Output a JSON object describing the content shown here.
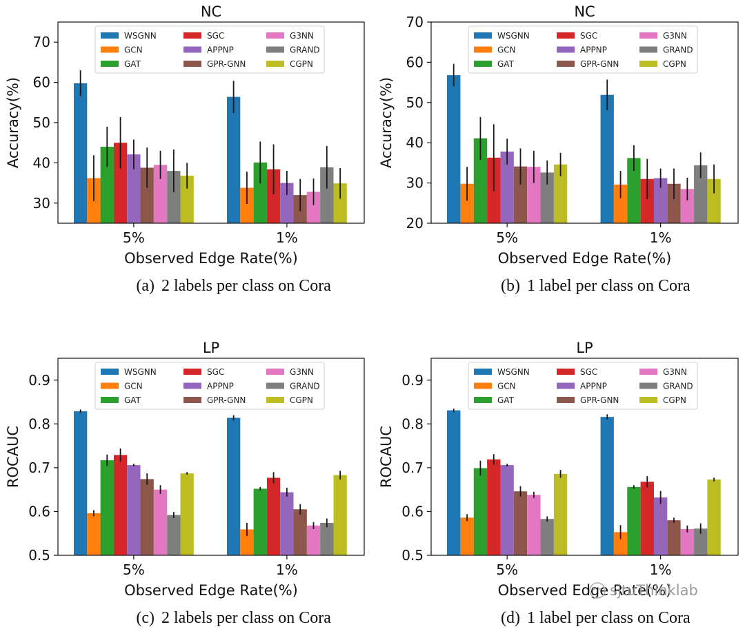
{
  "legend_labels": [
    "WSGNN",
    "GCN",
    "GAT",
    "SGC",
    "APPNP",
    "GPR-GNN",
    "G3NN",
    "GRAND",
    "CGPN"
  ],
  "colors": [
    "#1f77b4",
    "#ff7f0e",
    "#2ca02c",
    "#d62728",
    "#9467bd",
    "#8c564b",
    "#e377c2",
    "#7f7f7f",
    "#bcbd22"
  ],
  "xlabel": "Observed Edge Rate(%)",
  "categories": [
    "5%",
    "1%"
  ],
  "watermark": "sjtuThinklab",
  "chart_data": [
    {
      "type": "bar",
      "panel": "a",
      "title": "NC",
      "ylabel": "Accuracy(%)",
      "caption_label": "(a)",
      "caption_text": "2 labels per class on Cora",
      "ylim": [
        25,
        75
      ],
      "yticks": [
        30,
        40,
        50,
        60,
        70
      ],
      "ytick_labels": [
        "30",
        "40",
        "50",
        "60",
        "70"
      ],
      "series": [
        {
          "name": "WSGNN",
          "values": [
            59.8,
            56.4
          ],
          "err": [
            3.2,
            4.0
          ]
        },
        {
          "name": "GCN",
          "values": [
            36.2,
            33.8
          ],
          "err": [
            5.7,
            4.0
          ]
        },
        {
          "name": "GAT",
          "values": [
            44.0,
            40.1
          ],
          "err": [
            5.0,
            5.2
          ]
        },
        {
          "name": "SGC",
          "values": [
            45.0,
            38.4
          ],
          "err": [
            6.4,
            6.2
          ]
        },
        {
          "name": "APPNP",
          "values": [
            42.1,
            35.0
          ],
          "err": [
            3.7,
            3.0
          ]
        },
        {
          "name": "GPR-GNN",
          "values": [
            38.8,
            32.0
          ],
          "err": [
            5.0,
            4.0
          ]
        },
        {
          "name": "G3NN",
          "values": [
            39.5,
            32.8
          ],
          "err": [
            3.5,
            3.3
          ]
        },
        {
          "name": "GRAND",
          "values": [
            38.0,
            38.9
          ],
          "err": [
            5.3,
            5.3
          ]
        },
        {
          "name": "CGPN",
          "values": [
            36.8,
            34.9
          ],
          "err": [
            3.2,
            3.8
          ]
        }
      ]
    },
    {
      "type": "bar",
      "panel": "b",
      "title": "NC",
      "ylabel": "Accuracy(%)",
      "caption_label": "(b)",
      "caption_text": "1 label per class on Cora",
      "ylim": [
        20,
        70
      ],
      "yticks": [
        20,
        30,
        40,
        50,
        60,
        70
      ],
      "ytick_labels": [
        "20",
        "30",
        "40",
        "50",
        "60",
        "70"
      ],
      "series": [
        {
          "name": "WSGNN",
          "values": [
            56.8,
            51.9
          ],
          "err": [
            2.8,
            3.8
          ]
        },
        {
          "name": "GCN",
          "values": [
            29.8,
            29.6
          ],
          "err": [
            4.2,
            3.4
          ]
        },
        {
          "name": "GAT",
          "values": [
            41.1,
            36.2
          ],
          "err": [
            5.3,
            3.2
          ]
        },
        {
          "name": "SGC",
          "values": [
            36.3,
            31.0
          ],
          "err": [
            8.3,
            5.0
          ]
        },
        {
          "name": "APPNP",
          "values": [
            37.8,
            31.2
          ],
          "err": [
            3.2,
            2.4
          ]
        },
        {
          "name": "GPR-GNN",
          "values": [
            34.1,
            29.8
          ],
          "err": [
            4.5,
            3.8
          ]
        },
        {
          "name": "G3NN",
          "values": [
            34.0,
            28.5
          ],
          "err": [
            4.0,
            2.8
          ]
        },
        {
          "name": "GRAND",
          "values": [
            32.6,
            34.4
          ],
          "err": [
            3.0,
            3.2
          ]
        },
        {
          "name": "CGPN",
          "values": [
            34.6,
            31.0
          ],
          "err": [
            2.9,
            3.6
          ]
        }
      ]
    },
    {
      "type": "bar",
      "panel": "c",
      "title": "LP",
      "ylabel": "ROCAUC",
      "caption_label": "(c)",
      "caption_text": "2 labels per class on Cora",
      "ylim": [
        0.5,
        0.95
      ],
      "yticks": [
        0.5,
        0.6,
        0.7,
        0.8,
        0.9
      ],
      "ytick_labels": [
        "0.5",
        "0.6",
        "0.7",
        "0.8",
        "0.9"
      ],
      "series": [
        {
          "name": "WSGNN",
          "values": [
            0.829,
            0.814
          ],
          "err": [
            0.004,
            0.006
          ]
        },
        {
          "name": "GCN",
          "values": [
            0.596,
            0.559
          ],
          "err": [
            0.007,
            0.015
          ]
        },
        {
          "name": "GAT",
          "values": [
            0.717,
            0.652
          ],
          "err": [
            0.013,
            0.004
          ]
        },
        {
          "name": "SGC",
          "values": [
            0.729,
            0.677
          ],
          "err": [
            0.015,
            0.013
          ]
        },
        {
          "name": "APPNP",
          "values": [
            0.706,
            0.644
          ],
          "err": [
            0.003,
            0.01
          ]
        },
        {
          "name": "GPR-GNN",
          "values": [
            0.674,
            0.605
          ],
          "err": [
            0.013,
            0.012
          ]
        },
        {
          "name": "G3NN",
          "values": [
            0.65,
            0.568
          ],
          "err": [
            0.01,
            0.008
          ]
        },
        {
          "name": "GRAND",
          "values": [
            0.592,
            0.574
          ],
          "err": [
            0.007,
            0.01
          ]
        },
        {
          "name": "CGPN",
          "values": [
            0.687,
            0.683
          ],
          "err": [
            0.003,
            0.01
          ]
        }
      ]
    },
    {
      "type": "bar",
      "panel": "d",
      "title": "LP",
      "ylabel": "ROCAUC",
      "caption_label": "(d)",
      "caption_text": "1 label per class on Cora",
      "ylim": [
        0.5,
        0.95
      ],
      "yticks": [
        0.5,
        0.6,
        0.7,
        0.8,
        0.9
      ],
      "ytick_labels": [
        "0.5",
        "0.6",
        "0.7",
        "0.8",
        "0.9"
      ],
      "series": [
        {
          "name": "WSGNN",
          "values": [
            0.831,
            0.816
          ],
          "err": [
            0.004,
            0.006
          ]
        },
        {
          "name": "GCN",
          "values": [
            0.586,
            0.553
          ],
          "err": [
            0.008,
            0.016
          ]
        },
        {
          "name": "GAT",
          "values": [
            0.699,
            0.656
          ],
          "err": [
            0.017,
            0.004
          ]
        },
        {
          "name": "SGC",
          "values": [
            0.719,
            0.668
          ],
          "err": [
            0.012,
            0.013
          ]
        },
        {
          "name": "APPNP",
          "values": [
            0.706,
            0.632
          ],
          "err": [
            0.003,
            0.015
          ]
        },
        {
          "name": "GPR-GNN",
          "values": [
            0.646,
            0.58
          ],
          "err": [
            0.012,
            0.006
          ]
        },
        {
          "name": "G3NN",
          "values": [
            0.638,
            0.56
          ],
          "err": [
            0.007,
            0.008
          ]
        },
        {
          "name": "GRAND",
          "values": [
            0.583,
            0.561
          ],
          "err": [
            0.006,
            0.012
          ]
        },
        {
          "name": "CGPN",
          "values": [
            0.686,
            0.673
          ],
          "err": [
            0.009,
            0.004
          ]
        }
      ]
    }
  ]
}
